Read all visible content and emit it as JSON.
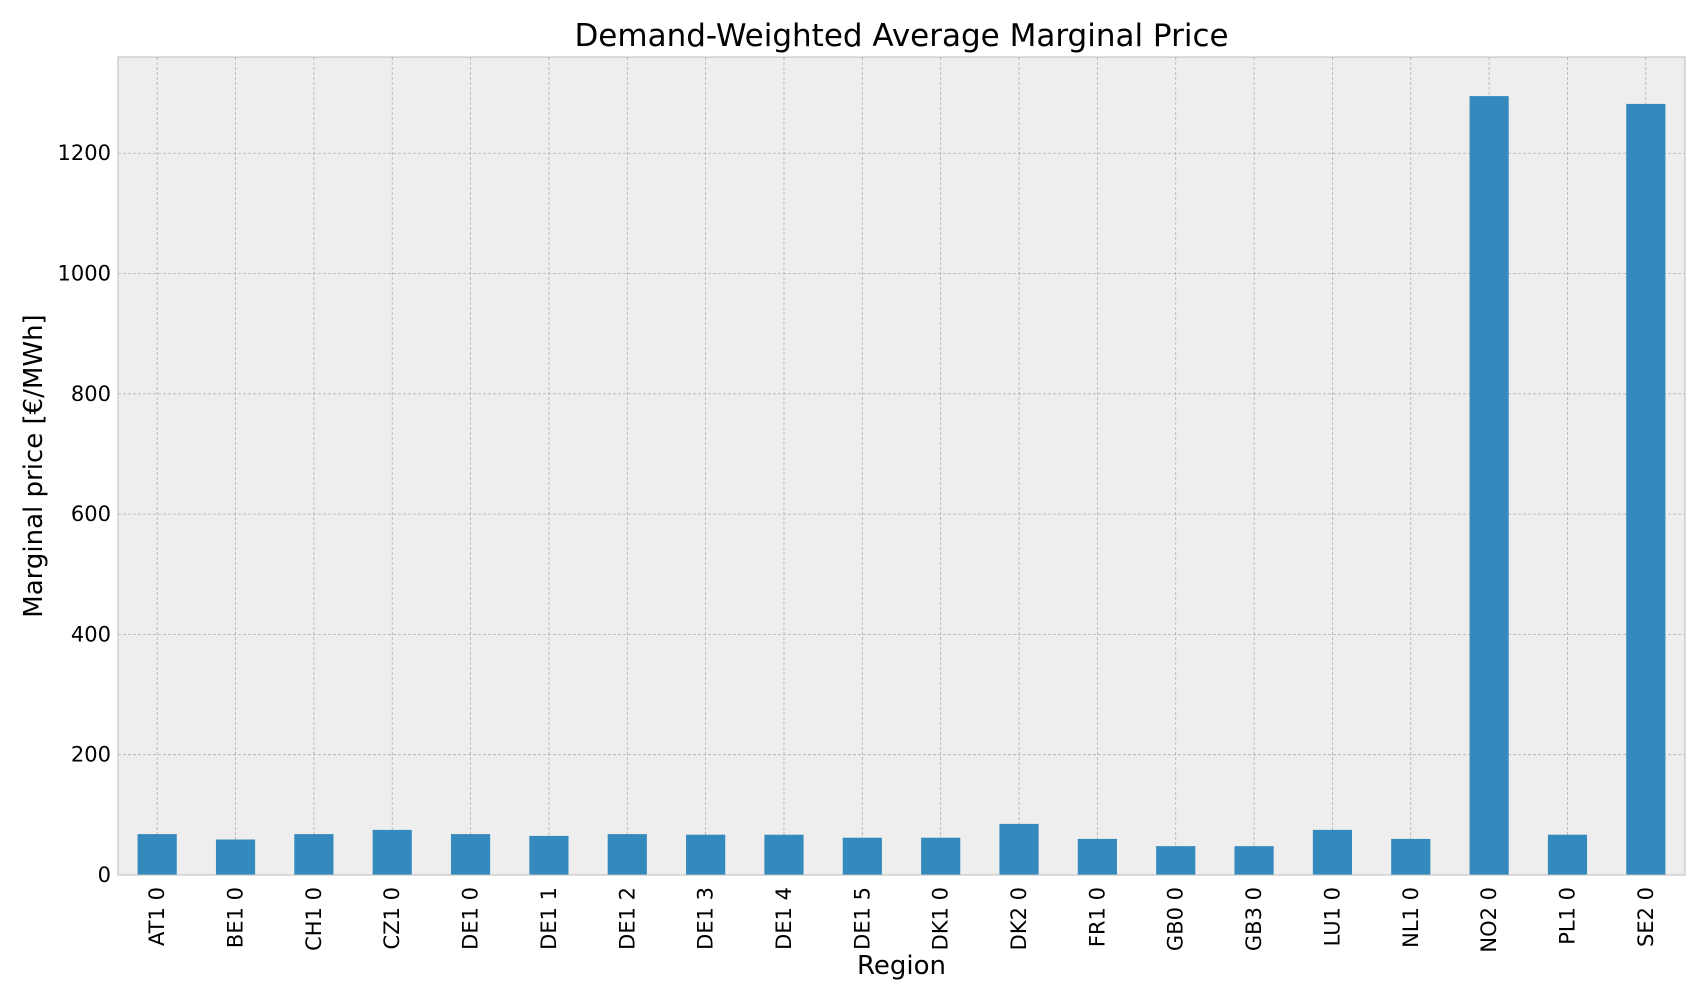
{
  "chart_data": {
    "type": "bar",
    "title": "Demand-Weighted Average Marginal Price",
    "xlabel": "Region",
    "ylabel": "Marginal price [€/MWh]",
    "ylim": [
      0,
      1360
    ],
    "yticks": [
      0,
      200,
      400,
      600,
      800,
      1000,
      1200
    ],
    "grid": true,
    "categories": [
      "AT1 0",
      "BE1 0",
      "CH1 0",
      "CZ1 0",
      "DE1 0",
      "DE1 1",
      "DE1 2",
      "DE1 3",
      "DE1 4",
      "DE1 5",
      "DK1 0",
      "DK2 0",
      "FR1 0",
      "GB0 0",
      "GB3 0",
      "LU1 0",
      "NL1 0",
      "NO2 0",
      "PL1 0",
      "SE2 0"
    ],
    "values": [
      68,
      59,
      68,
      75,
      68,
      65,
      68,
      67,
      67,
      62,
      62,
      85,
      60,
      48,
      48,
      75,
      60,
      1295,
      67,
      1282
    ],
    "colors": {
      "bar": "#348abd",
      "plot_background": "#eeeeee",
      "grid": "#b0b0b0",
      "frame": "#bcbcbc"
    }
  }
}
